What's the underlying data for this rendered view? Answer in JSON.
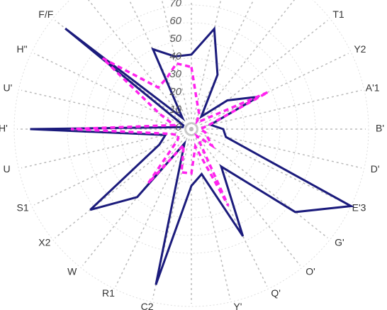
{
  "chart_data": {
    "type": "radar",
    "categories": [
      null,
      null,
      null,
      null,
      "T1",
      "Y2",
      "A'1",
      "B'",
      "D'",
      "E'3",
      "G'",
      "O'",
      "Q'",
      "Y'",
      null,
      "C2",
      "R1",
      "W",
      "X2",
      "S1",
      "U",
      "H'",
      "U'",
      "H\"",
      "F/F",
      null,
      null,
      null
    ],
    "series": [
      {
        "color": "#1b1b7c",
        "values": [
          42,
          58,
          34,
          9,
          26,
          42,
          11,
          18,
          20,
          100,
          75,
          27,
          67,
          26,
          32,
          90,
          9,
          49,
          73,
          20,
          15,
          91,
          5,
          5,
          91,
          8,
          50,
          42
        ]
      },
      {
        "color": "#ff22ee",
        "values": [
          35,
          15,
          10,
          5,
          8,
          48,
          10,
          5,
          8,
          10,
          15,
          5,
          48,
          10,
          25,
          25,
          10,
          39,
          10,
          8,
          12,
          68,
          10,
          20,
          64,
          30,
          32,
          38
        ]
      }
    ],
    "ylim": [
      0,
      100
    ],
    "yticks": [
      0,
      10,
      20,
      30,
      40,
      50,
      60,
      70
    ],
    "grid": true
  }
}
